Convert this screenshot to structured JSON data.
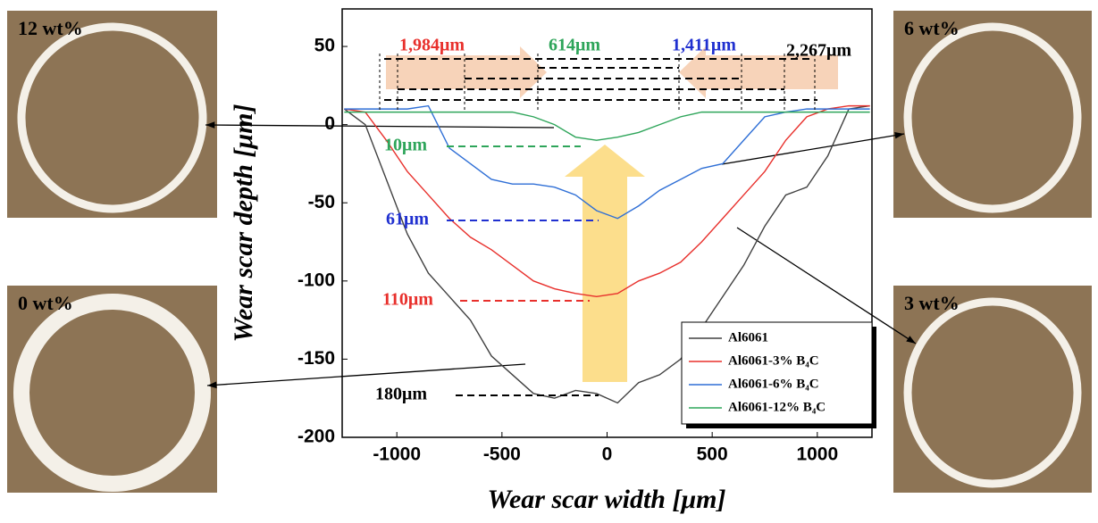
{
  "chart_data": {
    "type": "line",
    "x_label": "Wear scar width [μm]",
    "y_label": "Wear scar depth [μm]",
    "xlim": [
      -1260,
      1260
    ],
    "ylim": [
      -200,
      74
    ],
    "xticks": [
      -1000,
      -500,
      0,
      500,
      1000
    ],
    "yticks": [
      -200,
      -150,
      -100,
      -50,
      0,
      50
    ],
    "x": [
      -1250,
      -1150,
      -1050,
      -950,
      -850,
      -750,
      -650,
      -550,
      -450,
      -350,
      -250,
      -150,
      -50,
      50,
      150,
      250,
      350,
      450,
      550,
      650,
      750,
      850,
      950,
      1050,
      1150,
      1250
    ],
    "series": [
      {
        "name": "Al6061",
        "color": "#404040",
        "values": [
          10,
          0,
          -35,
          -70,
          -95,
          -110,
          -125,
          -148,
          -160,
          -172,
          -175,
          -170,
          -172,
          -178,
          -165,
          -160,
          -150,
          -130,
          -110,
          -90,
          -65,
          -45,
          -40,
          -20,
          10,
          12
        ]
      },
      {
        "name": "Al6061-3% B₄C",
        "color": "#e8302c",
        "values": [
          10,
          8,
          -10,
          -30,
          -45,
          -60,
          -72,
          -80,
          -90,
          -100,
          -105,
          -108,
          -110,
          -108,
          -100,
          -95,
          -88,
          -75,
          -60,
          -45,
          -30,
          -10,
          5,
          10,
          12,
          12
        ]
      },
      {
        "name": "Al6061-6% B₄C",
        "color": "#2f6fd6",
        "values": [
          10,
          10,
          10,
          10,
          12,
          -15,
          -25,
          -35,
          -38,
          -38,
          -40,
          -45,
          -55,
          -60,
          -52,
          -42,
          -35,
          -28,
          -25,
          -10,
          5,
          8,
          10,
          10,
          10,
          10
        ]
      },
      {
        "name": "Al6061-12% B₄C",
        "color": "#2ea55a",
        "values": [
          8,
          8,
          8,
          8,
          8,
          8,
          8,
          8,
          8,
          5,
          0,
          -8,
          -10,
          -8,
          -5,
          0,
          5,
          8,
          8,
          8,
          8,
          8,
          8,
          8,
          8,
          8
        ]
      }
    ],
    "annotations": [
      {
        "text": "1,984μm",
        "color": "#e8302c"
      },
      {
        "text": "614μm",
        "color": "#2ea55a"
      },
      {
        "text": "1,411μm",
        "color": "#2030d0"
      },
      {
        "text": "2,267μm",
        "color": "#000000"
      },
      {
        "text": "10μm",
        "color": "#2ea55a"
      },
      {
        "text": "61μm",
        "color": "#2030d0"
      },
      {
        "text": "110μm",
        "color": "#e8302c"
      },
      {
        "text": "180μm",
        "color": "#000000"
      }
    ],
    "samples": [
      {
        "label": "12 wt%"
      },
      {
        "label": "6 wt%"
      },
      {
        "label": "0 wt%"
      },
      {
        "label": "3 wt%"
      }
    ]
  }
}
